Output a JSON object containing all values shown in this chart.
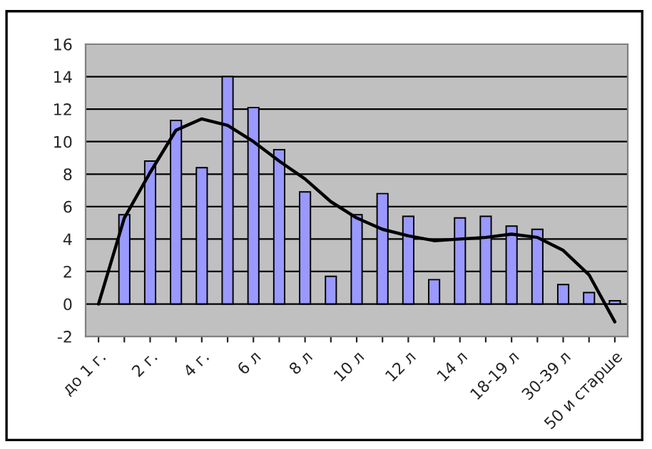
{
  "chart_data": {
    "type": "bar",
    "categories": [
      "до 1 г.",
      null,
      "2 г.",
      null,
      "4 г.",
      null,
      "6 л",
      null,
      "8 л",
      null,
      "10 л",
      null,
      "12 л",
      null,
      "14 л",
      null,
      "18-19 л",
      null,
      "30-39 л",
      null,
      "50 и старше"
    ],
    "series": [
      {
        "color": "#9999ff",
        "values": [
          null,
          5.5,
          8.8,
          11.3,
          8.4,
          14,
          12.1,
          9.5,
          6.9,
          1.7,
          5.5,
          6.8,
          5.4,
          1.5,
          5.3,
          5.4,
          4.8,
          4.6,
          1.2,
          0.7,
          0.2
        ]
      },
      {
        "type": "line",
        "color": "#000000",
        "values": [
          0,
          5.3,
          8.1,
          10.7,
          11.4,
          11.0,
          10.0,
          8.8,
          7.7,
          6.3,
          5.3,
          4.6,
          4.2,
          3.9,
          4.0,
          4.1,
          4.3,
          4.1,
          3.3,
          1.8,
          -1.1
        ]
      }
    ],
    "ylim": [
      -2,
      16
    ],
    "yticks": [
      -2,
      0,
      2,
      4,
      6,
      8,
      10,
      12,
      14,
      16
    ],
    "grid": "y"
  }
}
